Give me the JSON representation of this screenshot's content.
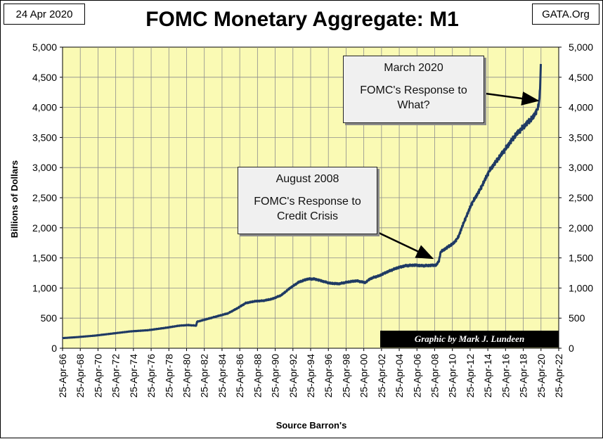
{
  "header": {
    "date": "24 Apr 2020",
    "title": "FOMC Monetary Aggregate: M1",
    "site": "GATA.Org"
  },
  "annotations": {
    "aug2008": {
      "title": "August 2008",
      "lines": [
        "FOMC's Response to",
        "Credit Crisis"
      ],
      "points_to": "2008-10"
    },
    "mar2020": {
      "title": "March 2020",
      "lines": [
        "FOMC's Response to",
        "What?"
      ],
      "points_to": "2020-03"
    }
  },
  "credit": "Graphic by Mark J. Lundeen",
  "colors": {
    "plot_bg": "#FAFAB4",
    "line": "#1F3A64",
    "grid": "#8C8C8C"
  },
  "chart_data": {
    "type": "line",
    "title": "FOMC Monetary Aggregate: M1",
    "xlabel": "Source Barron's",
    "ylabel": "Billions  of  Dollars",
    "ylim": [
      0,
      5000
    ],
    "y_ticks": [
      "0",
      "500",
      "1,000",
      "1,500",
      "2,000",
      "2,500",
      "3,000",
      "3,500",
      "4,000",
      "4,500",
      "5,000"
    ],
    "y_tick_values": [
      0,
      500,
      1000,
      1500,
      2000,
      2500,
      3000,
      3500,
      4000,
      4500,
      5000
    ],
    "xlim": [
      1966.32,
      2022.32
    ],
    "x_tick_labels": [
      "25-Apr-66",
      "25-Apr-68",
      "25-Apr-70",
      "25-Apr-72",
      "25-Apr-74",
      "25-Apr-76",
      "25-Apr-78",
      "25-Apr-80",
      "25-Apr-82",
      "25-Apr-84",
      "25-Apr-86",
      "25-Apr-88",
      "25-Apr-90",
      "25-Apr-92",
      "25-Apr-94",
      "25-Apr-96",
      "25-Apr-98",
      "25-Apr-00",
      "25-Apr-02",
      "25-Apr-04",
      "25-Apr-06",
      "25-Apr-08",
      "25-Apr-10",
      "25-Apr-12",
      "25-Apr-14",
      "25-Apr-16",
      "25-Apr-18",
      "25-Apr-20",
      "25-Apr-22"
    ],
    "grid": true,
    "right_axis": true,
    "series": [
      {
        "name": "M1 (Billions of Dollars)",
        "x": [
          1966.3,
          1968,
          1970,
          1972,
          1974,
          1976,
          1978,
          1979.5,
          1980.5,
          1981.4,
          1981.5,
          1982.5,
          1983.5,
          1985,
          1986,
          1987,
          1988,
          1989,
          1990,
          1991,
          1992,
          1993,
          1994,
          1994.8,
          1995.5,
          1996.5,
          1997.5,
          1998.5,
          1999.5,
          2000.5,
          2001,
          2001.5,
          2002,
          2003,
          2004,
          2005,
          2006,
          2007,
          2008.5,
          2008.8,
          2009.0,
          2009.5,
          2010.5,
          2011.0,
          2011.5,
          2012.5,
          2013.5,
          2014.5,
          2015.5,
          2016.5,
          2017.5,
          2018.5,
          2019.5,
          2020.0,
          2020.15,
          2020.25,
          2020.3
        ],
        "y": [
          168,
          185,
          210,
          245,
          280,
          300,
          340,
          375,
          385,
          375,
          440,
          480,
          520,
          580,
          660,
          750,
          780,
          790,
          820,
          880,
          1000,
          1100,
          1150,
          1150,
          1120,
          1080,
          1070,
          1100,
          1120,
          1090,
          1150,
          1180,
          1200,
          1270,
          1330,
          1370,
          1380,
          1370,
          1380,
          1450,
          1600,
          1650,
          1750,
          1850,
          2050,
          2400,
          2650,
          2950,
          3150,
          3350,
          3550,
          3700,
          3850,
          4000,
          4150,
          4450,
          4720
        ]
      }
    ]
  },
  "footer": {
    "source": "Source Barron's"
  }
}
